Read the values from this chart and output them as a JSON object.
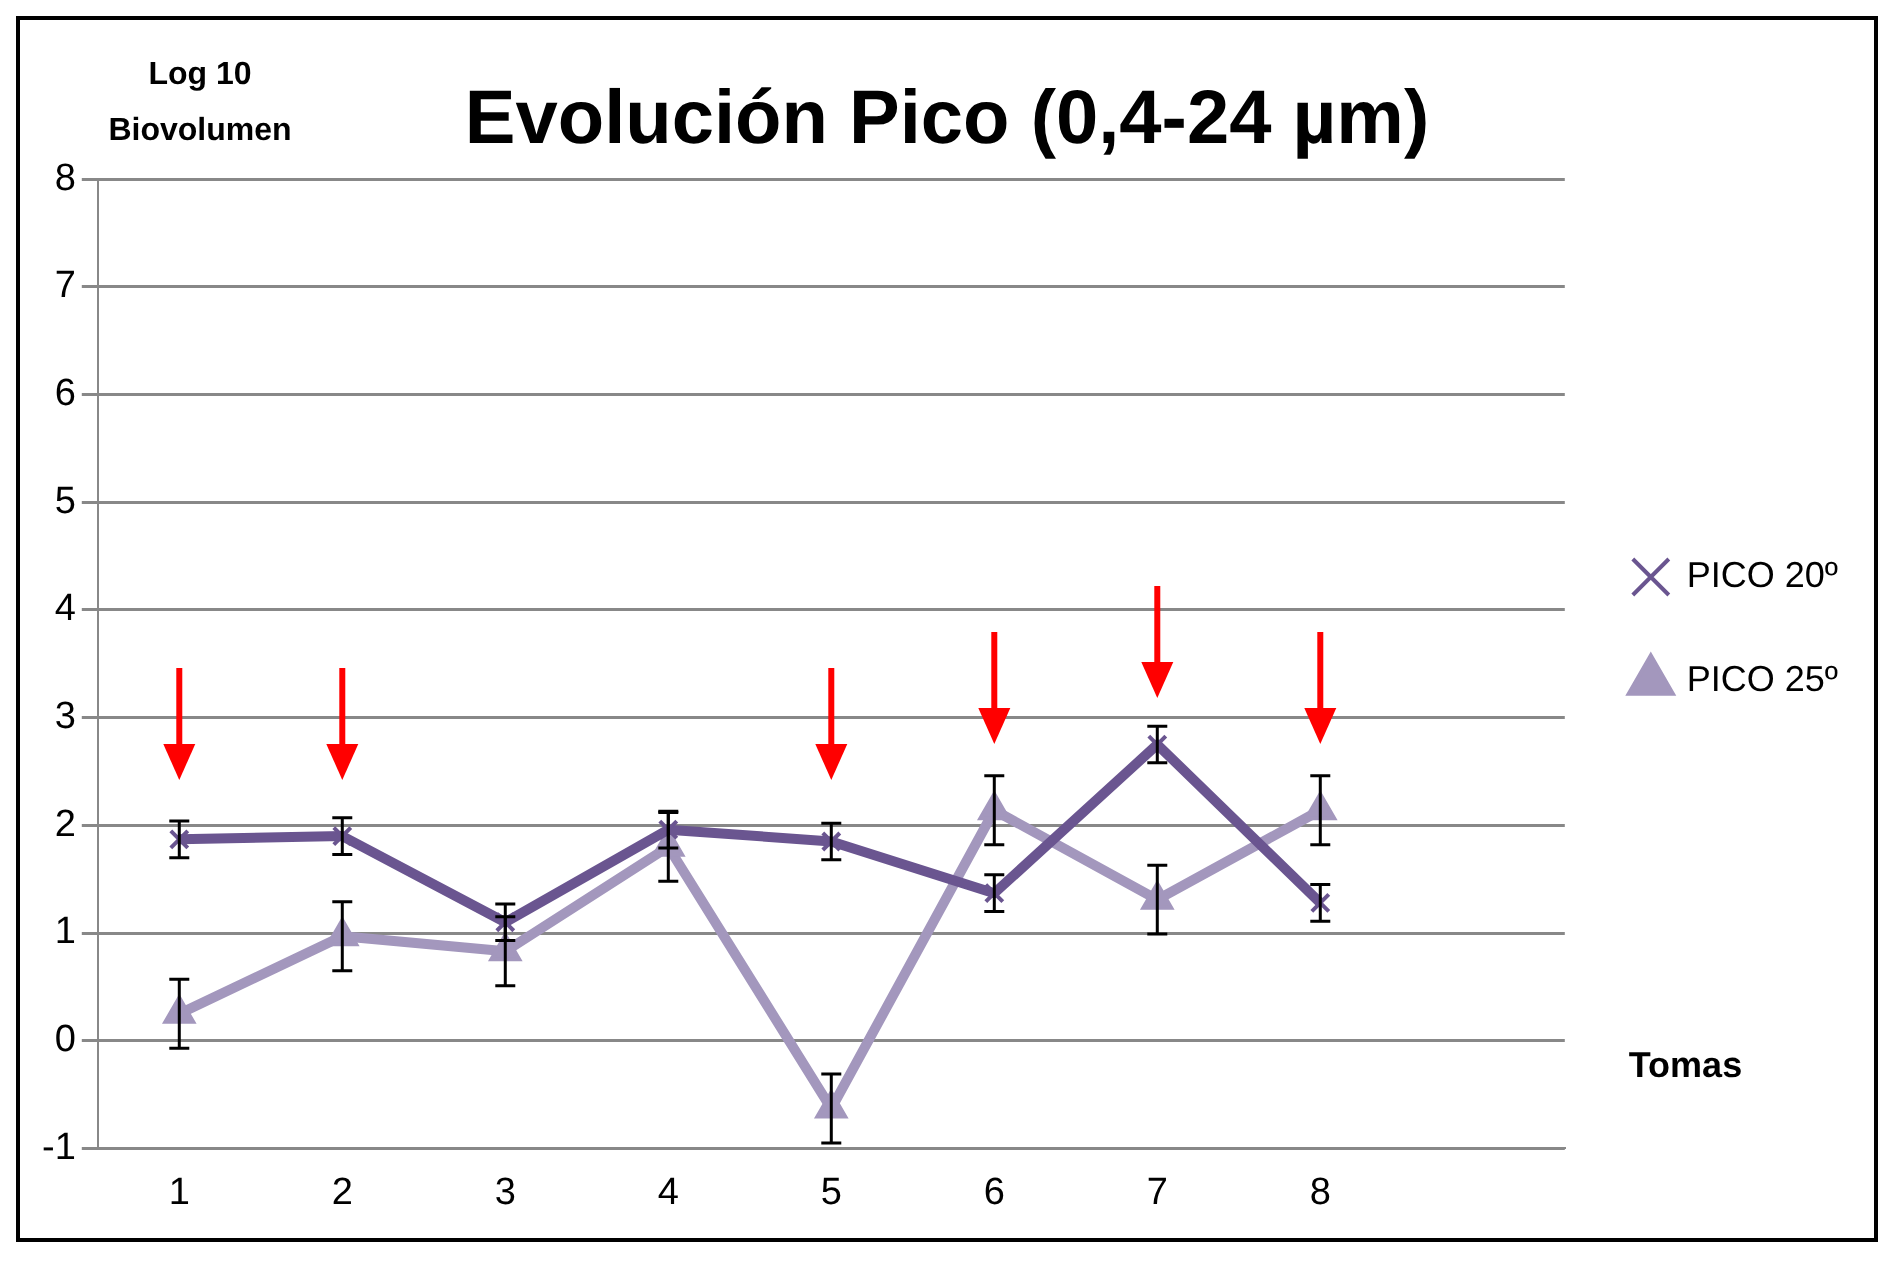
{
  "chart_data": {
    "type": "line",
    "title": "Evolución Pico (0,4-24 µm)",
    "xlabel": "Tomas",
    "ylabel": "Log 10 Biovolumen",
    "categories": [
      "1",
      "2",
      "3",
      "4",
      "5",
      "6",
      "7",
      "8",
      null
    ],
    "ylim": [
      -1,
      8
    ],
    "yticks": [
      -1,
      0,
      1,
      2,
      3,
      4,
      5,
      6,
      7,
      8
    ],
    "grid": "y",
    "legend": "right",
    "series": [
      {
        "name": "PICO 20º",
        "color": "#6a5590",
        "marker": "cross",
        "values": [
          1.87,
          1.9,
          1.1,
          1.96,
          1.85,
          1.37,
          2.75,
          1.28,
          null
        ],
        "errors": [
          0.17,
          0.17,
          0.17,
          0.17,
          0.17,
          0.17,
          0.17,
          0.17,
          null
        ]
      },
      {
        "name": "PICO 25º",
        "color": "#a397bd",
        "marker": "triangle",
        "values": [
          0.25,
          0.97,
          0.83,
          1.8,
          -0.63,
          2.14,
          1.31,
          2.14,
          null
        ],
        "errors": [
          0.32,
          0.32,
          0.32,
          0.32,
          0.32,
          0.32,
          0.32,
          0.32,
          null
        ]
      }
    ]
  }
}
